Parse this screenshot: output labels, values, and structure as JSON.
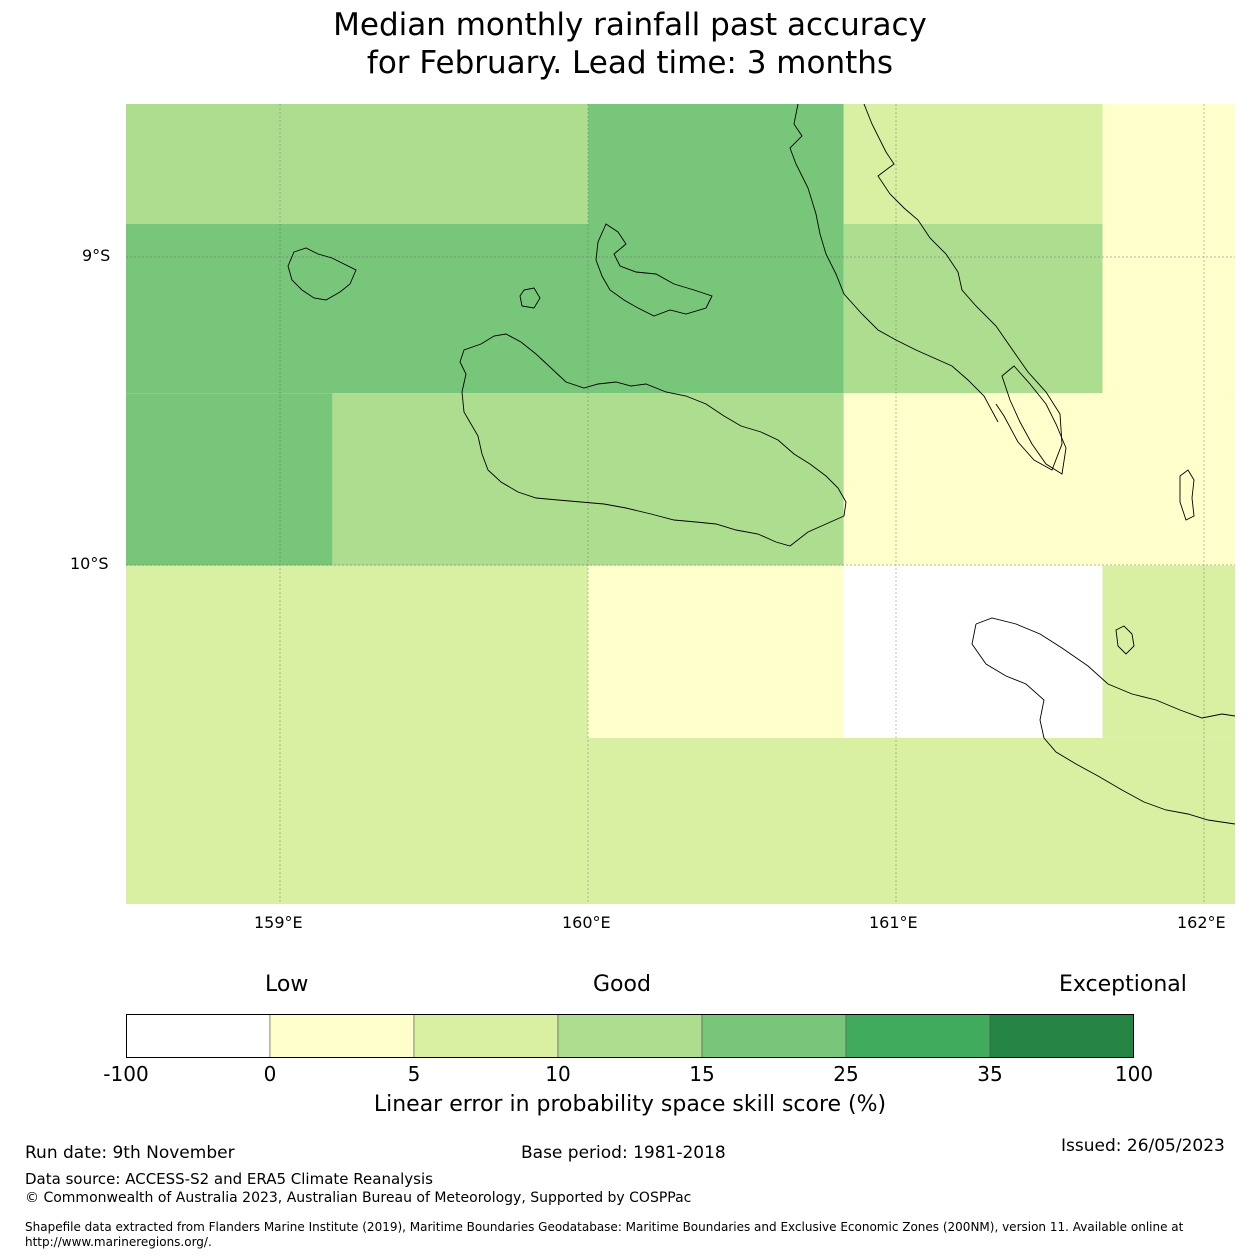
{
  "title_line1": "Median monthly rainfall past accuracy",
  "title_line2": "for February. Lead time: 3 months",
  "map": {
    "lon_range": [
      158.5,
      162.1
    ],
    "lat_range": [
      -8.5,
      -11.1
    ],
    "lat_ticks": [
      "9°S",
      "10°S"
    ],
    "lon_ticks": [
      "159°E",
      "160°E",
      "161°E",
      "162°E"
    ],
    "grid": [
      {
        "lon0": 158.5,
        "lon1": 160.0,
        "lat0": -8.5,
        "lat1": -8.89,
        "color": "#addd8e"
      },
      {
        "lon0": 160.0,
        "lon1": 160.83,
        "lat0": -8.5,
        "lat1": -8.89,
        "color": "#78c679"
      },
      {
        "lon0": 160.83,
        "lon1": 161.67,
        "lat0": -8.5,
        "lat1": -8.89,
        "color": "#d9f0a3"
      },
      {
        "lon0": 161.67,
        "lon1": 162.1,
        "lat0": -8.5,
        "lat1": -8.89,
        "color": "#ffffcc"
      },
      {
        "lon0": 158.5,
        "lon1": 160.83,
        "lat0": -8.89,
        "lat1": -9.44,
        "color": "#78c679"
      },
      {
        "lon0": 160.83,
        "lon1": 161.67,
        "lat0": -8.89,
        "lat1": -9.44,
        "color": "#addd8e"
      },
      {
        "lon0": 161.67,
        "lon1": 162.1,
        "lat0": -8.89,
        "lat1": -9.44,
        "color": "#ffffcc"
      },
      {
        "lon0": 158.5,
        "lon1": 159.17,
        "lat0": -9.44,
        "lat1": -10.0,
        "color": "#78c679"
      },
      {
        "lon0": 159.17,
        "lon1": 160.83,
        "lat0": -9.44,
        "lat1": -10.0,
        "color": "#addd8e"
      },
      {
        "lon0": 160.83,
        "lon1": 162.1,
        "lat0": -9.44,
        "lat1": -10.0,
        "color": "#ffffcc"
      },
      {
        "lon0": 158.5,
        "lon1": 160.0,
        "lat0": -10.0,
        "lat1": -11.1,
        "color": "#d9f0a3"
      },
      {
        "lon0": 160.0,
        "lon1": 160.83,
        "lat0": -10.0,
        "lat1": -10.56,
        "color": "#ffffcc"
      },
      {
        "lon0": 160.83,
        "lon1": 161.67,
        "lat0": -10.0,
        "lat1": -10.56,
        "color": "#ffffff"
      },
      {
        "lon0": 161.67,
        "lon1": 162.1,
        "lat0": -10.0,
        "lat1": -10.56,
        "color": "#d9f0a3"
      },
      {
        "lon0": 160.0,
        "lon1": 162.1,
        "lat0": -10.56,
        "lat1": -11.1,
        "color": "#d9f0a3"
      }
    ]
  },
  "colorbar": {
    "low_label": "Low",
    "good_label": "Good",
    "exceptional_label": "Exceptional",
    "colors": [
      "#ffffff",
      "#ffffcc",
      "#d9f0a3",
      "#addd8e",
      "#78c679",
      "#41ab5d",
      "#238443"
    ],
    "ticks": [
      "-100",
      "0",
      "5",
      "10",
      "15",
      "25",
      "35",
      "100"
    ],
    "label": "Linear error in probability space skill score (%)"
  },
  "footer": {
    "run_date": "Run date: 9th November",
    "base_period": "Base period: 1981-2018",
    "issued": "Issued: 26/05/2023",
    "data_source": "Data source: ACCESS-S2 and ERA5 Climate Reanalysis",
    "copyright": "© Commonwealth of Australia 2023, Australian Bureau of Meteorology, Supported by COSPPac",
    "shapefile_note": "Shapefile data extracted from Flanders Marine Institute (2019), Maritime Boundaries Geodatabase: Maritime Boundaries and Exclusive Economic Zones (200NM), version 11. Available online at http://www.marineregions.org/."
  }
}
